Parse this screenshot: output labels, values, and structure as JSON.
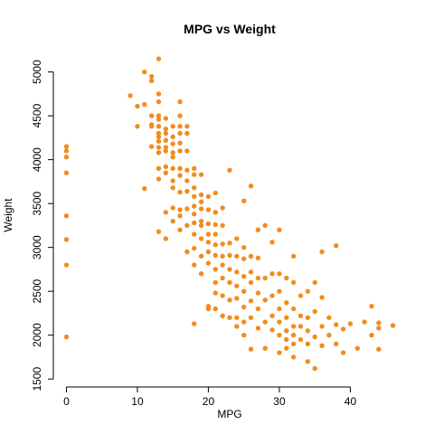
{
  "chart_data": {
    "type": "scatter",
    "title": "MPG vs Weight",
    "xlabel": "MPG",
    "ylabel": "Weight",
    "xlim": [
      -1.84,
      47.84
    ],
    "ylim": [
      1533,
      5212
    ],
    "xticks": [
      0,
      10,
      20,
      30,
      40
    ],
    "yticks": [
      1500,
      2000,
      2500,
      3000,
      3500,
      4000,
      4500,
      5000
    ],
    "point_color": "#f28c1e",
    "grid": false,
    "legend": "none",
    "points": [
      [
        0,
        4150
      ],
      [
        0,
        4100
      ],
      [
        0,
        4030
      ],
      [
        0,
        3850
      ],
      [
        0,
        3360
      ],
      [
        0,
        3090
      ],
      [
        0,
        2800
      ],
      [
        0,
        1980
      ],
      [
        9,
        4730
      ],
      [
        10,
        4610
      ],
      [
        10,
        4380
      ],
      [
        11,
        4630
      ],
      [
        11,
        5000
      ],
      [
        11,
        3670
      ],
      [
        12,
        4950
      ],
      [
        12,
        4900
      ],
      [
        12,
        4500
      ],
      [
        12,
        4400
      ],
      [
        12,
        4380
      ],
      [
        12,
        4150
      ],
      [
        13,
        5150
      ],
      [
        13,
        4750
      ],
      [
        13,
        4660
      ],
      [
        13,
        4500
      ],
      [
        13,
        4460
      ],
      [
        13,
        4380
      ],
      [
        13,
        4300
      ],
      [
        13,
        4260
      ],
      [
        13,
        4210
      ],
      [
        13,
        4140
      ],
      [
        13,
        4080
      ],
      [
        13,
        3900
      ],
      [
        13,
        3780
      ],
      [
        13,
        3180
      ],
      [
        14,
        4470
      ],
      [
        14,
        4350
      ],
      [
        14,
        4300
      ],
      [
        14,
        4220
      ],
      [
        14,
        4140
      ],
      [
        14,
        4100
      ],
      [
        14,
        3920
      ],
      [
        14,
        3850
      ],
      [
        14,
        3400
      ],
      [
        14,
        3100
      ],
      [
        15,
        4380
      ],
      [
        15,
        4260
      ],
      [
        15,
        4180
      ],
      [
        15,
        4080
      ],
      [
        15,
        4030
      ],
      [
        15,
        3900
      ],
      [
        15,
        3760
      ],
      [
        15,
        3680
      ],
      [
        15,
        3300
      ],
      [
        15,
        3450
      ],
      [
        16,
        4660
      ],
      [
        16,
        4500
      ],
      [
        16,
        4380
      ],
      [
        16,
        4300
      ],
      [
        16,
        4190
      ],
      [
        16,
        4100
      ],
      [
        16,
        3900
      ],
      [
        16,
        3820
      ],
      [
        16,
        3630
      ],
      [
        16,
        3430
      ],
      [
        16,
        3360
      ],
      [
        16,
        3200
      ],
      [
        17,
        4380
      ],
      [
        17,
        4300
      ],
      [
        17,
        4100
      ],
      [
        17,
        3880
      ],
      [
        17,
        3760
      ],
      [
        17,
        3640
      ],
      [
        17,
        3440
      ],
      [
        17,
        3250
      ],
      [
        17,
        2950
      ],
      [
        18,
        3900
      ],
      [
        18,
        3830
      ],
      [
        18,
        3680
      ],
      [
        18,
        3580
      ],
      [
        18,
        3470
      ],
      [
        18,
        3380
      ],
      [
        18,
        3280
      ],
      [
        18,
        3150
      ],
      [
        18,
        2990
      ],
      [
        18,
        2800
      ],
      [
        18,
        2130
      ],
      [
        19,
        3830
      ],
      [
        19,
        3600
      ],
      [
        19,
        3520
      ],
      [
        19,
        3440
      ],
      [
        19,
        3300
      ],
      [
        19,
        3250
      ],
      [
        19,
        3100
      ],
      [
        19,
        2900
      ],
      [
        19,
        2700
      ],
      [
        20,
        3580
      ],
      [
        20,
        3430
      ],
      [
        20,
        3270
      ],
      [
        20,
        3150
      ],
      [
        20,
        3060
      ],
      [
        20,
        2950
      ],
      [
        20,
        2820
      ],
      [
        20,
        2330
      ],
      [
        20,
        2300
      ],
      [
        21,
        3620
      ],
      [
        21,
        3400
      ],
      [
        21,
        3260
      ],
      [
        21,
        3150
      ],
      [
        21,
        3030
      ],
      [
        21,
        2910
      ],
      [
        21,
        2750
      ],
      [
        21,
        2600
      ],
      [
        21,
        2480
      ],
      [
        21,
        2300
      ],
      [
        22,
        3450
      ],
      [
        22,
        3250
      ],
      [
        22,
        3040
      ],
      [
        22,
        2900
      ],
      [
        22,
        2800
      ],
      [
        22,
        2650
      ],
      [
        22,
        2450
      ],
      [
        22,
        2220
      ],
      [
        23,
        3880
      ],
      [
        23,
        3050
      ],
      [
        23,
        2910
      ],
      [
        23,
        2750
      ],
      [
        23,
        2600
      ],
      [
        23,
        2400
      ],
      [
        23,
        2200
      ],
      [
        24,
        3100
      ],
      [
        24,
        2900
      ],
      [
        24,
        2720
      ],
      [
        24,
        2560
      ],
      [
        24,
        2420
      ],
      [
        24,
        2200
      ],
      [
        24,
        2100
      ],
      [
        25,
        3530
      ],
      [
        25,
        3000
      ],
      [
        25,
        2870
      ],
      [
        25,
        2670
      ],
      [
        25,
        2500
      ],
      [
        25,
        2320
      ],
      [
        25,
        2150
      ],
      [
        25,
        2000
      ],
      [
        26,
        3700
      ],
      [
        26,
        2900
      ],
      [
        26,
        2720
      ],
      [
        26,
        2600
      ],
      [
        26,
        2390
      ],
      [
        26,
        2200
      ],
      [
        26,
        1840
      ],
      [
        27,
        3200
      ],
      [
        27,
        2880
      ],
      [
        27,
        2650
      ],
      [
        27,
        2480
      ],
      [
        27,
        2300
      ],
      [
        27,
        2080
      ],
      [
        28,
        3250
      ],
      [
        28,
        2650
      ],
      [
        28,
        2400
      ],
      [
        28,
        2150
      ],
      [
        28,
        1850
      ],
      [
        29,
        3060
      ],
      [
        29,
        2700
      ],
      [
        29,
        2450
      ],
      [
        29,
        2220
      ],
      [
        29,
        2060
      ],
      [
        30,
        3200
      ],
      [
        30,
        2700
      ],
      [
        30,
        2500
      ],
      [
        30,
        2300
      ],
      [
        30,
        2150
      ],
      [
        30,
        2000
      ],
      [
        30,
        1800
      ],
      [
        31,
        2650
      ],
      [
        31,
        2370
      ],
      [
        31,
        2200
      ],
      [
        31,
        2050
      ],
      [
        31,
        1950
      ],
      [
        31,
        1850
      ],
      [
        32,
        2900
      ],
      [
        32,
        2600
      ],
      [
        32,
        2300
      ],
      [
        32,
        2100
      ],
      [
        32,
        2000
      ],
      [
        32,
        1900
      ],
      [
        32,
        1750
      ],
      [
        33,
        2450
      ],
      [
        33,
        2220
      ],
      [
        33,
        2100
      ],
      [
        33,
        1950
      ],
      [
        34,
        2500
      ],
      [
        34,
        2200
      ],
      [
        34,
        2050
      ],
      [
        34,
        1900
      ],
      [
        34,
        1700
      ],
      [
        35,
        2600
      ],
      [
        35,
        2270
      ],
      [
        35,
        1980
      ],
      [
        35,
        1620
      ],
      [
        36,
        2950
      ],
      [
        36,
        2430
      ],
      [
        36,
        2100
      ],
      [
        36,
        1880
      ],
      [
        37,
        2200
      ],
      [
        37,
        2000
      ],
      [
        38,
        3020
      ],
      [
        38,
        2120
      ],
      [
        38,
        1900
      ],
      [
        39,
        1800
      ],
      [
        39,
        2070
      ],
      [
        40,
        2130
      ],
      [
        41,
        1850
      ],
      [
        42,
        2150
      ],
      [
        43,
        2000
      ],
      [
        43,
        2330
      ],
      [
        44,
        2140
      ],
      [
        44,
        2080
      ],
      [
        44,
        1840
      ],
      [
        46,
        2110
      ]
    ]
  }
}
